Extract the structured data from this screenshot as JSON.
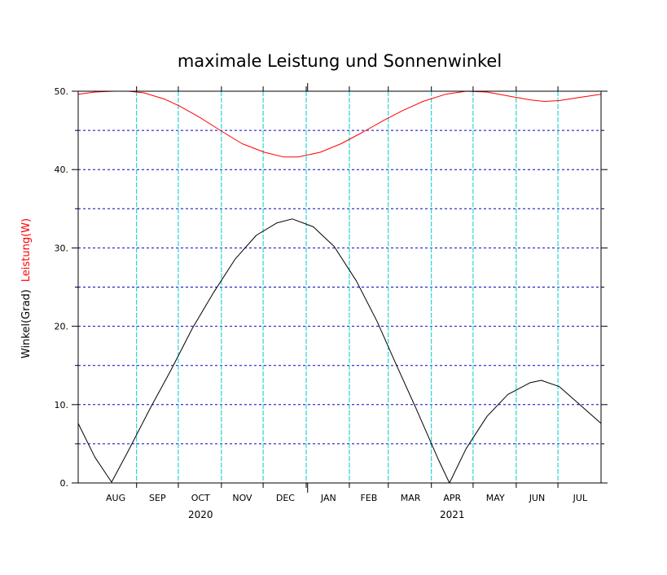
{
  "chart_data": {
    "type": "line",
    "title": "maximale Leistung und Sonnenwinkel",
    "ylabel": {
      "black_part": "Winkel(Grad)",
      "red_part": "Leistung(W)"
    },
    "ylim": [
      0,
      50
    ],
    "y_ticks": [
      {
        "value": 0,
        "label": "0."
      },
      {
        "value": 10,
        "label": "10."
      },
      {
        "value": 20,
        "label": "20."
      },
      {
        "value": 30,
        "label": "30."
      },
      {
        "value": 40,
        "label": "40."
      },
      {
        "value": 50,
        "label": "50."
      }
    ],
    "y_grid_lines": [
      5,
      10,
      15,
      20,
      25,
      30,
      35,
      40,
      45
    ],
    "x_range": [
      "2020-07-20",
      "2021-07-31"
    ],
    "x_month_labels": [
      {
        "date": "2020-08-16",
        "label": "AUG"
      },
      {
        "date": "2020-09-15",
        "label": "SEP"
      },
      {
        "date": "2020-10-16",
        "label": "OCT"
      },
      {
        "date": "2020-11-15",
        "label": "NOV"
      },
      {
        "date": "2020-12-16",
        "label": "DEC"
      },
      {
        "date": "2021-01-16",
        "label": "JAN"
      },
      {
        "date": "2021-02-14",
        "label": "FEB"
      },
      {
        "date": "2021-03-16",
        "label": "MAR"
      },
      {
        "date": "2021-04-15",
        "label": "APR"
      },
      {
        "date": "2021-05-16",
        "label": "MAY"
      },
      {
        "date": "2021-06-15",
        "label": "JUN"
      },
      {
        "date": "2021-07-16",
        "label": "JUL"
      }
    ],
    "x_year_labels": [
      {
        "date": "2020-10-16",
        "label": "2020"
      },
      {
        "date": "2021-04-15",
        "label": "2021"
      }
    ],
    "x_grid_lines": [
      "2020-08-31",
      "2020-09-30",
      "2020-10-31",
      "2020-11-30",
      "2020-12-31",
      "2021-01-31",
      "2021-02-28",
      "2021-03-31",
      "2021-04-30",
      "2021-05-31",
      "2021-06-30"
    ],
    "year_boundary_tick": "2021-01-01",
    "grid": true,
    "series": [
      {
        "name": "Leistung(W)",
        "color": "#ff0000",
        "points": [
          [
            "2020-07-20",
            49.6
          ],
          [
            "2020-08-01",
            49.9
          ],
          [
            "2020-08-15",
            50.0
          ],
          [
            "2020-08-25",
            50.0
          ],
          [
            "2020-09-05",
            49.8
          ],
          [
            "2020-09-20",
            49.0
          ],
          [
            "2020-10-01",
            48.1
          ],
          [
            "2020-10-15",
            46.7
          ],
          [
            "2020-11-01",
            44.8
          ],
          [
            "2020-11-15",
            43.3
          ],
          [
            "2020-12-01",
            42.2
          ],
          [
            "2020-12-15",
            41.6
          ],
          [
            "2020-12-25",
            41.6
          ],
          [
            "2021-01-10",
            42.2
          ],
          [
            "2021-01-25",
            43.3
          ],
          [
            "2021-02-10",
            44.8
          ],
          [
            "2021-02-25",
            46.3
          ],
          [
            "2021-03-10",
            47.5
          ],
          [
            "2021-03-25",
            48.7
          ],
          [
            "2021-04-10",
            49.6
          ],
          [
            "2021-04-25",
            50.0
          ],
          [
            "2021-05-10",
            49.9
          ],
          [
            "2021-05-25",
            49.4
          ],
          [
            "2021-06-10",
            48.9
          ],
          [
            "2021-06-20",
            48.7
          ],
          [
            "2021-07-01",
            48.8
          ],
          [
            "2021-07-15",
            49.2
          ],
          [
            "2021-07-31",
            49.6
          ]
        ]
      },
      {
        "name": "Winkel(Grad)",
        "color": "#000000",
        "points": [
          [
            "2020-07-20",
            7.6
          ],
          [
            "2020-08-01",
            3.3
          ],
          [
            "2020-08-13",
            0.1
          ],
          [
            "2020-08-25",
            4.1
          ],
          [
            "2020-09-10",
            9.6
          ],
          [
            "2020-09-25",
            14.5
          ],
          [
            "2020-10-10",
            19.7
          ],
          [
            "2020-10-25",
            24.2
          ],
          [
            "2020-11-10",
            28.6
          ],
          [
            "2020-11-25",
            31.6
          ],
          [
            "2020-12-10",
            33.2
          ],
          [
            "2020-12-21",
            33.7
          ],
          [
            "2021-01-05",
            32.7
          ],
          [
            "2021-01-20",
            30.2
          ],
          [
            "2021-02-05",
            25.8
          ],
          [
            "2021-02-20",
            20.6
          ],
          [
            "2021-03-05",
            15.4
          ],
          [
            "2021-03-20",
            9.5
          ],
          [
            "2021-04-05",
            3.0
          ],
          [
            "2021-04-13",
            0.0
          ],
          [
            "2021-04-25",
            4.4
          ],
          [
            "2021-05-10",
            8.5
          ],
          [
            "2021-05-25",
            11.3
          ],
          [
            "2021-06-10",
            12.8
          ],
          [
            "2021-06-18",
            13.1
          ],
          [
            "2021-07-01",
            12.3
          ],
          [
            "2021-07-15",
            10.1
          ],
          [
            "2021-07-31",
            7.6
          ]
        ]
      }
    ]
  }
}
